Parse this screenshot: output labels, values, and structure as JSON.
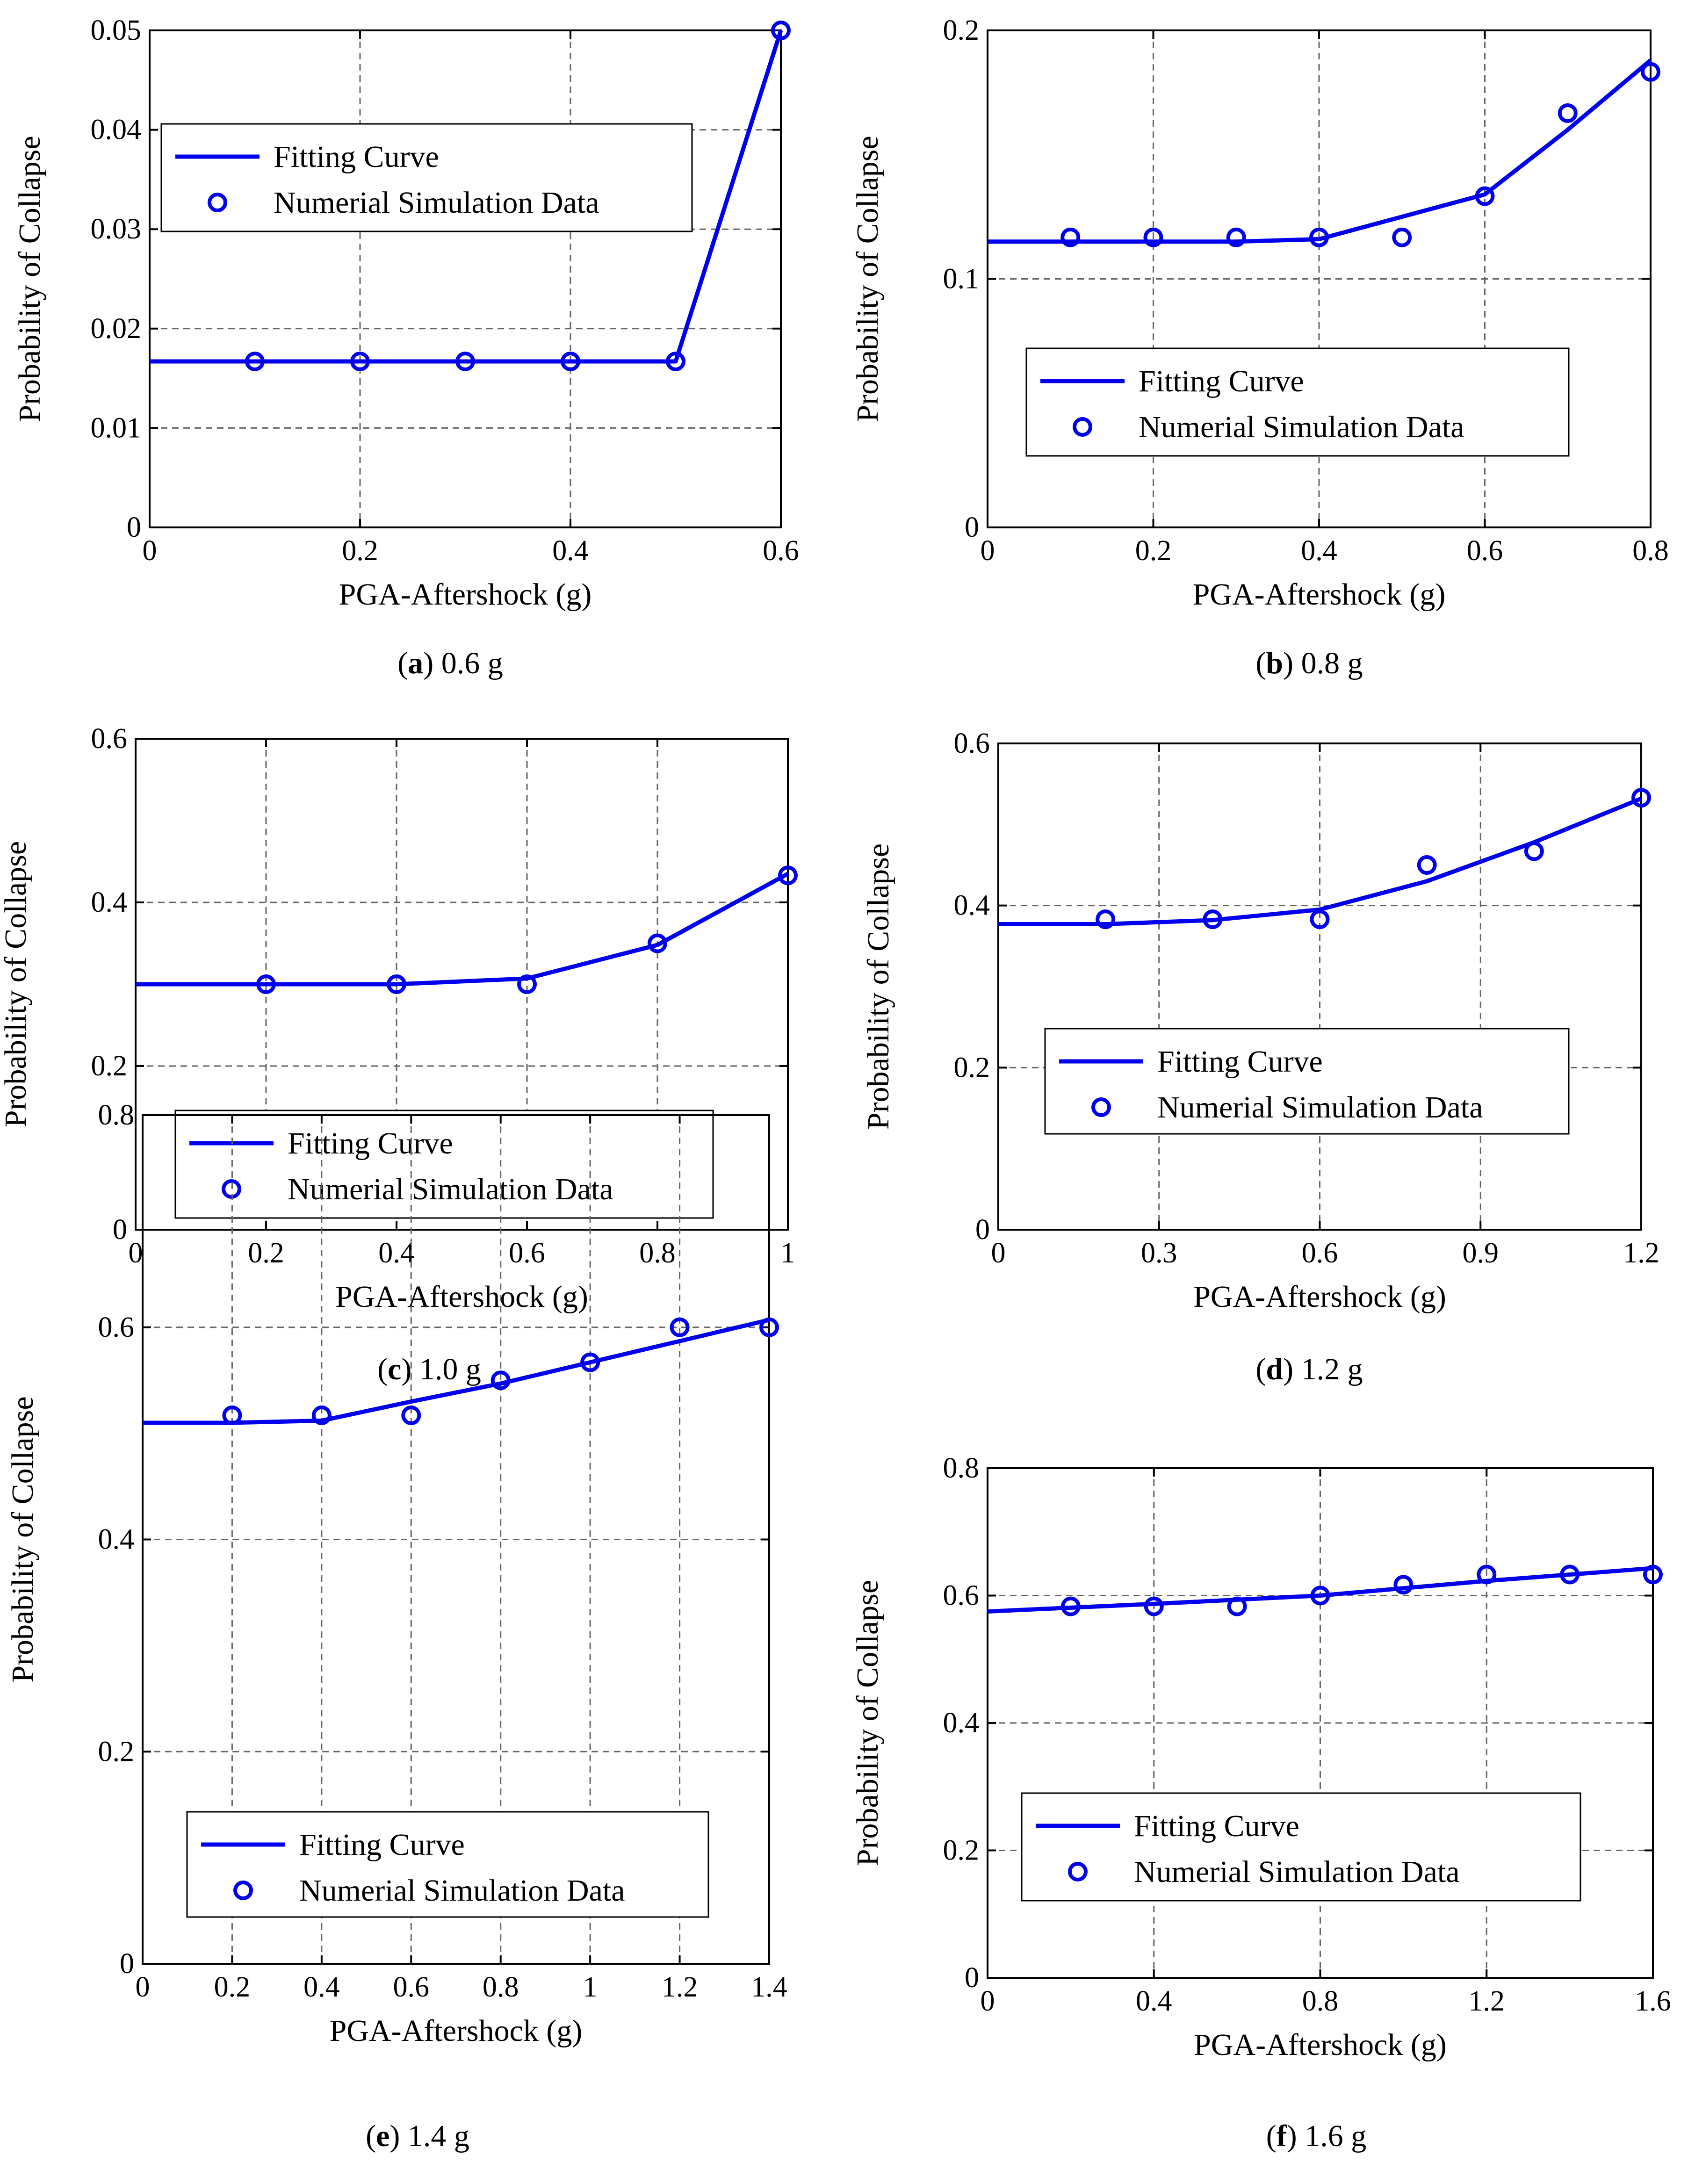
{
  "figure": {
    "panels": [
      {
        "letter": "a",
        "rest": ") 0.6 g",
        "open": "("
      },
      {
        "letter": "b",
        "rest": ") 0.8 g",
        "open": "("
      },
      {
        "letter": "c",
        "rest": ") 1.0 g",
        "open": "("
      },
      {
        "letter": "d",
        "rest": ") 1.2 g",
        "open": "("
      },
      {
        "letter": "e",
        "rest": ") 1.4 g",
        "open": "("
      },
      {
        "letter": "f",
        "rest": ") 1.6 g",
        "open": "("
      }
    ]
  },
  "colors": {
    "curve": "#0000ee",
    "grid": "#666666",
    "axis": "#000000"
  },
  "chart_data": [
    {
      "type": "line",
      "caption": "(a) 0.6 g",
      "xlabel": "PGA-Aftershock (g)",
      "ylabel": "Probability of Collapse",
      "xlim": [
        0,
        0.6
      ],
      "ylim": [
        0,
        0.05
      ],
      "xticks": [
        0,
        0.2,
        0.4,
        0.6
      ],
      "xtick_labels": [
        "0",
        "0.2",
        "0.4",
        "0.6"
      ],
      "yticks": [
        0,
        0.01,
        0.02,
        0.03,
        0.04,
        0.05
      ],
      "ytick_labels": [
        "0",
        "0.01",
        "0.02",
        "0.03",
        "0.04",
        "0.05"
      ],
      "grid": true,
      "legend_position": "upper-left",
      "legend": [
        "Fitting Curve",
        "Numerial Simulation Data"
      ],
      "fit_x": [
        0,
        0.1,
        0.2,
        0.3,
        0.4,
        0.5,
        0.6
      ],
      "fit_y": [
        0.0167,
        0.0167,
        0.0167,
        0.0167,
        0.0167,
        0.0167,
        0.05
      ],
      "data_x": [
        0.1,
        0.2,
        0.3,
        0.4,
        0.5,
        0.6
      ],
      "data_y": [
        0.0167,
        0.0167,
        0.0167,
        0.0167,
        0.0167,
        0.05
      ]
    },
    {
      "type": "line",
      "caption": "(b) 0.8 g",
      "xlabel": "PGA-Aftershock (g)",
      "ylabel": "Probability of Collapse",
      "xlim": [
        0,
        0.8
      ],
      "ylim": [
        0,
        0.2
      ],
      "xticks": [
        0,
        0.2,
        0.4,
        0.6,
        0.8
      ],
      "xtick_labels": [
        "0",
        "0.2",
        "0.4",
        "0.6",
        "0.8"
      ],
      "yticks": [
        0,
        0.1,
        0.2
      ],
      "ytick_labels": [
        "0",
        "0.1",
        "0.2"
      ],
      "grid": true,
      "legend_position": "lower-right",
      "legend": [
        "Fitting Curve",
        "Numerial Simulation Data"
      ],
      "fit_x": [
        0,
        0.1,
        0.2,
        0.3,
        0.4,
        0.5,
        0.6,
        0.7,
        0.8
      ],
      "fit_y": [
        0.115,
        0.115,
        0.115,
        0.115,
        0.116,
        0.125,
        0.134,
        0.16,
        0.188
      ],
      "data_x": [
        0.1,
        0.2,
        0.3,
        0.4,
        0.5,
        0.6,
        0.7,
        0.8
      ],
      "data_y": [
        0.1167,
        0.1167,
        0.1167,
        0.1167,
        0.1167,
        0.1333,
        0.1667,
        0.1833
      ]
    },
    {
      "type": "line",
      "caption": "(c) 1.0 g",
      "xlabel": "PGA-Aftershock (g)",
      "ylabel": "Probability of Collapse",
      "xlim": [
        0,
        1
      ],
      "ylim": [
        0,
        0.6
      ],
      "xticks": [
        0,
        0.2,
        0.4,
        0.6,
        0.8,
        1
      ],
      "xtick_labels": [
        "0",
        "0.2",
        "0.4",
        "0.6",
        "0.8",
        "1"
      ],
      "yticks": [
        0,
        0.2,
        0.4,
        0.6
      ],
      "ytick_labels": [
        "0",
        "0.2",
        "0.4",
        "0.6"
      ],
      "grid": true,
      "legend_position": "lower-center",
      "legend": [
        "Fitting Curve",
        "Numerial Simulation Data"
      ],
      "fit_x": [
        0,
        0.2,
        0.4,
        0.6,
        0.8,
        1
      ],
      "fit_y": [
        0.3,
        0.3,
        0.3,
        0.307,
        0.348,
        0.435
      ],
      "data_x": [
        0.2,
        0.4,
        0.6,
        0.8,
        1
      ],
      "data_y": [
        0.3,
        0.3,
        0.3,
        0.35,
        0.433
      ]
    },
    {
      "type": "line",
      "caption": "(d) 1.2 g",
      "xlabel": "PGA-Aftershock (g)",
      "ylabel": "Probability of Collapse",
      "xlim": [
        0,
        1.2
      ],
      "ylim": [
        0,
        0.6
      ],
      "xticks": [
        0,
        0.3,
        0.6,
        0.9,
        1.2
      ],
      "xtick_labels": [
        "0",
        "0.3",
        "0.6",
        "0.9",
        "1.2"
      ],
      "yticks": [
        0,
        0.2,
        0.4,
        0.6
      ],
      "ytick_labels": [
        "0",
        "0.2",
        "0.4",
        "0.6"
      ],
      "grid": true,
      "legend_position": "lower-right",
      "legend": [
        "Fitting Curve",
        "Numerial Simulation Data"
      ],
      "fit_x": [
        0,
        0.2,
        0.4,
        0.6,
        0.8,
        1,
        1.2
      ],
      "fit_y": [
        0.377,
        0.377,
        0.382,
        0.395,
        0.43,
        0.478,
        0.532
      ],
      "data_x": [
        0.2,
        0.4,
        0.6,
        0.8,
        1,
        1.2
      ],
      "data_y": [
        0.383,
        0.383,
        0.383,
        0.45,
        0.467,
        0.533
      ]
    },
    {
      "type": "line",
      "caption": "(e) 1.4 g",
      "xlabel": "PGA-Aftershock (g)",
      "ylabel": "Probability of Collapse",
      "xlim": [
        0,
        1.4
      ],
      "ylim": [
        0,
        0.8
      ],
      "xticks": [
        0,
        0.2,
        0.4,
        0.6,
        0.8,
        1,
        1.2,
        1.4
      ],
      "xtick_labels": [
        "0",
        "0.2",
        "0.4",
        "0.6",
        "0.8",
        "1",
        "1.2",
        "1.4"
      ],
      "yticks": [
        0,
        0.2,
        0.4,
        0.6,
        0.8
      ],
      "ytick_labels": [
        "0",
        "0.2",
        "0.4",
        "0.6",
        "0.8"
      ],
      "grid": true,
      "legend_position": "lower-center",
      "legend": [
        "Fitting Curve",
        "Numerial Simulation Data"
      ],
      "fit_x": [
        0,
        0.2,
        0.4,
        0.6,
        0.8,
        1,
        1.2,
        1.4
      ],
      "fit_y": [
        0.51,
        0.51,
        0.512,
        0.53,
        0.547,
        0.567,
        0.587,
        0.607
      ],
      "data_x": [
        0.2,
        0.4,
        0.6,
        0.8,
        1,
        1.2,
        1.4
      ],
      "data_y": [
        0.517,
        0.517,
        0.517,
        0.55,
        0.567,
        0.6,
        0.6
      ]
    },
    {
      "type": "line",
      "caption": "(f) 1.6 g",
      "xlabel": "PGA-Aftershock (g)",
      "ylabel": "Probability of Collapse",
      "xlim": [
        0,
        1.6
      ],
      "ylim": [
        0,
        0.8
      ],
      "xticks": [
        0,
        0.4,
        0.8,
        1.2,
        1.6
      ],
      "xtick_labels": [
        "0",
        "0.4",
        "0.8",
        "1.2",
        "1.6"
      ],
      "yticks": [
        0,
        0.2,
        0.4,
        0.6,
        0.8
      ],
      "ytick_labels": [
        "0",
        "0.2",
        "0.4",
        "0.6",
        "0.8"
      ],
      "grid": true,
      "legend_position": "lower-right",
      "legend": [
        "Fitting Curve",
        "Numerial Simulation Data"
      ],
      "fit_x": [
        0,
        0.4,
        0.8,
        1.2,
        1.6
      ],
      "fit_y": [
        0.575,
        0.587,
        0.6,
        0.623,
        0.643
      ],
      "data_x": [
        0.2,
        0.4,
        0.6,
        0.8,
        1,
        1.2,
        1.4,
        1.6
      ],
      "data_y": [
        0.583,
        0.583,
        0.583,
        0.6,
        0.617,
        0.633,
        0.633,
        0.633
      ]
    }
  ]
}
